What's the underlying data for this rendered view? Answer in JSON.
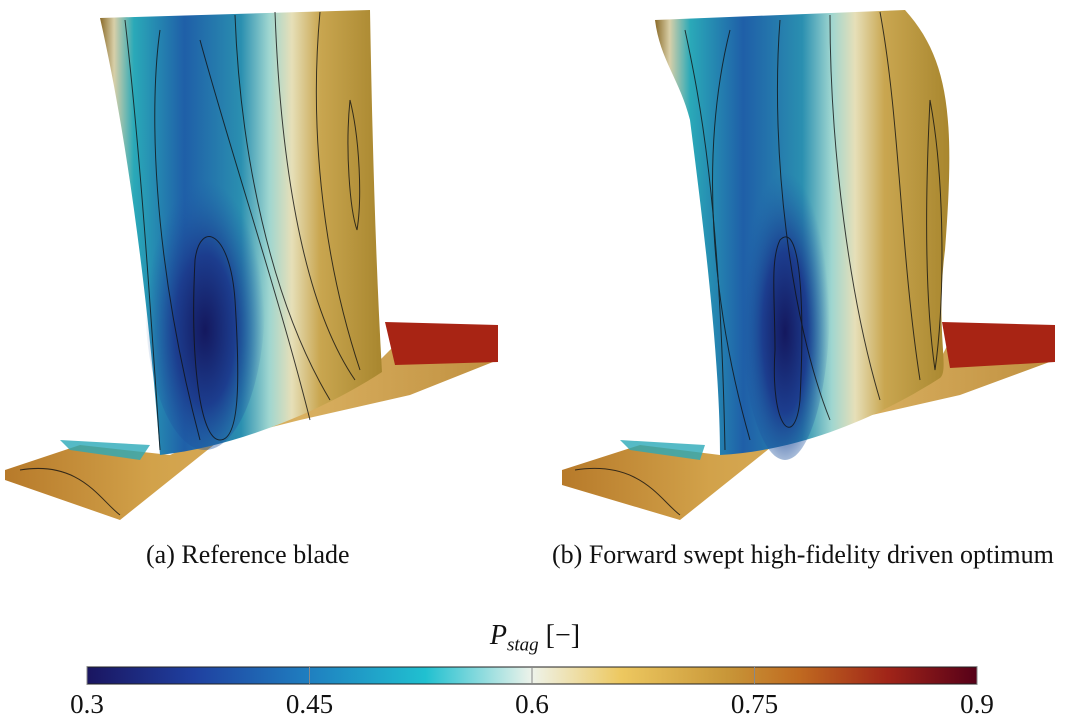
{
  "panels": [
    {
      "caption": "(a) Reference blade"
    },
    {
      "caption": "(b) Forward swept high-fidelity driven optimum"
    }
  ],
  "colorbar": {
    "symbol": "P",
    "subscript": "stag",
    "unit": "[−]",
    "range": [
      0.3,
      0.9
    ],
    "ticks": [
      0.3,
      0.45,
      0.6,
      0.75,
      0.9
    ]
  }
}
